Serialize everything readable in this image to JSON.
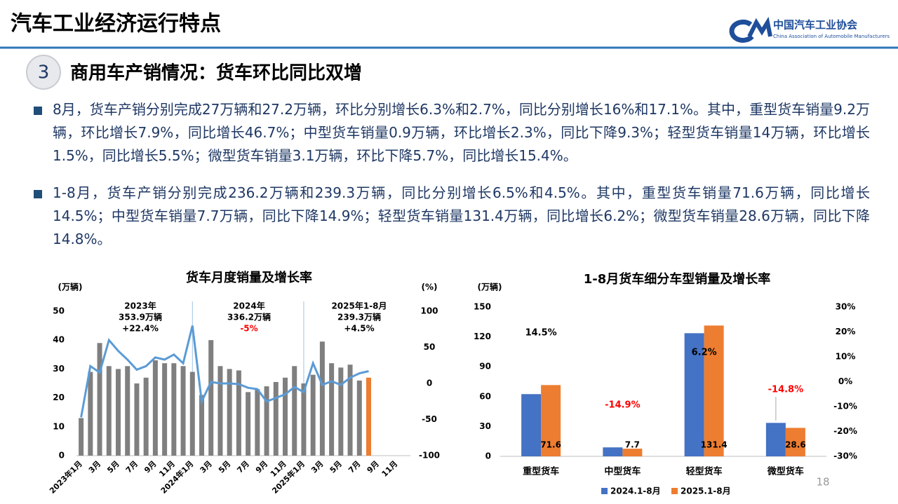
{
  "header": {
    "title": "汽车工业经济运行特点",
    "logo_name": "中国汽车工业协会",
    "logo_subtitle": "China Association of Automobile Manufacturers"
  },
  "section": {
    "number": "3",
    "title": "商用车产销情况：货车环比同比双增"
  },
  "bullets": [
    "8月，货车产销分别完成27万辆和27.2万辆，环比分别增长6.3%和2.7%，同比分别增长16%和17.1%。其中，重型货车销量9.2万辆，环比增长7.9%，同比增长46.7%；中型货车销量0.9万辆，环比增长2.3%，同比下降9.3%；轻型货车销量14万辆，环比增长1.5%，同比增长5.5%；微型货车销量3.1万辆，环比下降5.7%，同比增长15.4%。",
    "1-8月，货车产销分别完成236.2万辆和239.3万辆，同比分别增长6.5%和4.5%。其中，重型货车销量71.6万辆，同比增长14.5%；中型货车销量7.7万辆，同比下降14.9%；轻型货车销量131.4万辆，同比增长6.2%；微型货车销量28.6万辆，同比下降14.8%。"
  ],
  "page_number": "18",
  "chart_data": [
    {
      "type": "bar-line",
      "title": "货车月度销量及增长率",
      "y_axis_label": "(万辆)",
      "y2_axis_label": "(%)",
      "categories": [
        "2023年1月",
        null,
        "3月",
        null,
        "5月",
        null,
        "7月",
        null,
        "9月",
        null,
        "11月",
        null,
        "2024年1月",
        null,
        "3月",
        null,
        "5月",
        null,
        "7月",
        null,
        "9月",
        null,
        "11月",
        null,
        "2025年1月",
        null,
        "3月",
        null,
        "5月",
        null,
        "7月",
        null,
        "9月",
        null,
        "11月",
        null
      ],
      "series": [
        {
          "type": "bar",
          "color": "#7f7f7f",
          "highlight_color": "#ed7d31",
          "values": [
            13,
            29,
            39,
            31,
            30,
            31,
            25,
            27,
            33,
            32,
            32,
            31,
            29,
            21,
            40,
            31,
            30,
            29.5,
            22,
            23,
            24,
            25.5,
            27,
            31,
            25,
            28,
            39.5,
            32,
            30.5,
            31.5,
            26,
            27,
            null,
            null,
            null,
            null
          ]
        },
        {
          "type": "line",
          "color": "#5b9bd5",
          "axis": "y2",
          "values": [
            -47,
            24,
            15,
            60,
            45,
            33,
            19,
            24,
            36,
            33,
            40,
            28,
            80,
            -25,
            2,
            0,
            0,
            -1,
            -6,
            -8,
            -25,
            -20,
            -15,
            -5,
            -12,
            28,
            -2,
            3,
            -2,
            8,
            14,
            17,
            null,
            null,
            null,
            null
          ]
        }
      ],
      "ylim": [
        0,
        50
      ],
      "yticks": [
        0,
        10,
        20,
        30,
        40,
        50
      ],
      "y2lim": [
        -100,
        100
      ],
      "y2ticks": [
        -100,
        -50,
        0,
        50,
        100
      ],
      "annotations": [
        {
          "period": "2023年",
          "volume": "353.9万辆",
          "growth": "+22.4%",
          "growth_color": "#000000"
        },
        {
          "period": "2024年",
          "volume": "336.2万辆",
          "growth": "-5%",
          "growth_color": "#ff0000"
        },
        {
          "period": "2025年1-8月",
          "volume": "239.3万辆",
          "growth": "+4.5%",
          "growth_color": "#000000"
        }
      ]
    },
    {
      "type": "bar",
      "title": "1-8月货车细分车型销量及增长率",
      "y_axis_label": "(万辆)",
      "categories": [
        "重型货车",
        "中型货车",
        "轻型货车",
        "微型货车"
      ],
      "series": [
        {
          "name": "2024.1-8月",
          "color": "#4472c4",
          "values": [
            62.5,
            9.0,
            123.7,
            33.6
          ]
        },
        {
          "name": "2025.1-8月",
          "color": "#ed7d31",
          "values": [
            71.6,
            7.7,
            131.4,
            28.6
          ],
          "show_labels": true
        }
      ],
      "ylim": [
        0,
        150
      ],
      "yticks": [
        0,
        30,
        60,
        90,
        120,
        150
      ],
      "y2lim": [
        -30,
        30
      ],
      "y2ticks": [
        {
          "value": -30,
          "label": "-30%"
        },
        {
          "value": -20,
          "label": "-20%"
        },
        {
          "value": -10,
          "label": "-10%"
        },
        {
          "value": 0,
          "label": "0%"
        },
        {
          "value": 10,
          "label": "10%"
        },
        {
          "value": 20,
          "label": "20%"
        },
        {
          "value": 30,
          "label": "30%"
        }
      ],
      "annotations": [
        {
          "text": "14.5%",
          "color": "#000000"
        },
        {
          "text": "-14.9%",
          "color": "#ff0000"
        },
        {
          "text": "6.2%",
          "color": "#000000"
        },
        {
          "text": "-14.8%",
          "color": "#ff0000"
        }
      ],
      "legend": "bottom"
    }
  ]
}
